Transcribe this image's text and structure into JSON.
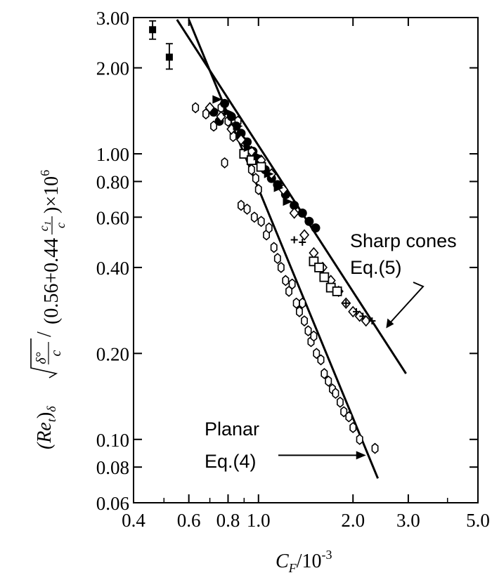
{
  "chart_data": {
    "type": "scatter",
    "x_scale": "log",
    "y_scale": "log",
    "xlim": [
      0.4,
      5.0
    ],
    "ylim": [
      0.06,
      3.0
    ],
    "grid": false,
    "x_ticks": [
      0.4,
      0.6,
      0.8,
      1.0,
      2.0,
      3.0,
      5.0
    ],
    "x_tick_labels": [
      "0.4",
      "0.6",
      "0.8",
      "1.0",
      "2.0",
      "3.0",
      "5.0"
    ],
    "x_minor_ticks": [
      0.5,
      0.7,
      0.9,
      4.0
    ],
    "y_ticks": [
      0.06,
      0.08,
      0.1,
      0.2,
      0.4,
      0.6,
      0.8,
      1.0,
      2.0,
      3.0
    ],
    "y_tick_labels": [
      "0.06",
      "0.08",
      "0.10",
      "0.20",
      "0.40",
      "0.60",
      "0.80",
      "1.00",
      "2.00",
      "3.00"
    ],
    "xlabel_main": "C",
    "xlabel_sub": "F",
    "xlabel_rest": "/10",
    "xlabel_exp": "-3",
    "ylabel": {
      "re": "(Re",
      "re_sub": "t",
      "close": ")",
      "delta_sub": "δ",
      "frac1_num": "δ°",
      "frac1_den": "c",
      "paren_text": "(0.56+0.44",
      "frac2_num": "c",
      "frac2_num_sub": "1",
      "frac2_den": "c",
      "tail": ")×10",
      "exp": "6",
      "slash": "/"
    },
    "annotations": [
      {
        "lines": [
          "Sharp cones",
          "Eq.(5)"
        ],
        "target": [
          2.55,
          0.245
        ]
      },
      {
        "lines": [
          "Planar",
          "Eq.(4)"
        ],
        "target": [
          2.2,
          0.088
        ]
      }
    ],
    "series": [
      {
        "marker": "open-hexagon",
        "points": [
          [
            0.63,
            1.45
          ],
          [
            0.68,
            1.38
          ],
          [
            0.72,
            1.25
          ],
          [
            0.76,
            1.45
          ],
          [
            0.8,
            1.3
          ],
          [
            0.83,
            1.15
          ],
          [
            0.86,
            1.3
          ],
          [
            0.9,
            1.1
          ],
          [
            0.92,
            1.0
          ],
          [
            0.78,
            0.93
          ],
          [
            0.95,
            0.88
          ],
          [
            0.98,
            0.82
          ],
          [
            1.0,
            0.75
          ],
          [
            0.88,
            0.66
          ],
          [
            0.92,
            0.64
          ],
          [
            0.97,
            0.6
          ],
          [
            1.02,
            0.58
          ],
          [
            1.06,
            0.52
          ],
          [
            1.08,
            0.55
          ],
          [
            1.12,
            0.47
          ],
          [
            1.15,
            0.43
          ],
          [
            1.18,
            0.4
          ],
          [
            1.22,
            0.36
          ],
          [
            1.25,
            0.33
          ],
          [
            1.28,
            0.35
          ],
          [
            1.32,
            0.3
          ],
          [
            1.35,
            0.28
          ],
          [
            1.38,
            0.3
          ],
          [
            1.4,
            0.26
          ],
          [
            1.44,
            0.24
          ],
          [
            1.47,
            0.22
          ],
          [
            1.5,
            0.23
          ],
          [
            1.53,
            0.2
          ],
          [
            1.58,
            0.19
          ],
          [
            1.62,
            0.17
          ],
          [
            1.67,
            0.16
          ],
          [
            1.72,
            0.15
          ],
          [
            1.76,
            0.145
          ],
          [
            1.82,
            0.135
          ],
          [
            1.87,
            0.125
          ],
          [
            1.94,
            0.12
          ],
          [
            2.0,
            0.11
          ],
          [
            2.1,
            0.1
          ],
          [
            2.35,
            0.093
          ]
        ]
      },
      {
        "marker": "filled-circle",
        "points": [
          [
            0.72,
            1.4
          ],
          [
            0.75,
            1.3
          ],
          [
            0.78,
            1.5
          ],
          [
            0.82,
            1.35
          ],
          [
            0.85,
            1.25
          ],
          [
            0.88,
            1.18
          ],
          [
            0.92,
            1.1
          ],
          [
            0.96,
            1.02
          ],
          [
            1.0,
            0.95
          ],
          [
            1.05,
            0.88
          ],
          [
            1.1,
            0.82
          ],
          [
            1.15,
            0.78
          ],
          [
            1.22,
            0.72
          ],
          [
            1.3,
            0.66
          ],
          [
            1.38,
            0.62
          ],
          [
            1.45,
            0.58
          ],
          [
            1.52,
            0.55
          ]
        ]
      },
      {
        "marker": "open-diamond",
        "points": [
          [
            0.7,
            1.45
          ],
          [
            0.76,
            1.35
          ],
          [
            0.82,
            1.22
          ],
          [
            0.88,
            1.12
          ],
          [
            0.95,
            1.02
          ],
          [
            1.02,
            0.95
          ],
          [
            1.1,
            0.85
          ],
          [
            1.2,
            0.75
          ],
          [
            1.3,
            0.62
          ],
          [
            1.4,
            0.52
          ],
          [
            1.5,
            0.45
          ],
          [
            1.6,
            0.4
          ],
          [
            1.7,
            0.36
          ],
          [
            1.8,
            0.33
          ],
          [
            1.9,
            0.3
          ],
          [
            2.0,
            0.28
          ],
          [
            2.1,
            0.27
          ],
          [
            2.2,
            0.26
          ]
        ]
      },
      {
        "marker": "open-square",
        "points": [
          [
            0.9,
            1.0
          ],
          [
            0.95,
            0.95
          ],
          [
            1.02,
            0.9
          ],
          [
            1.5,
            0.42
          ],
          [
            1.56,
            0.4
          ],
          [
            1.62,
            0.37
          ],
          [
            1.7,
            0.34
          ],
          [
            1.78,
            0.33
          ]
        ]
      },
      {
        "marker": "filled-triangle",
        "points": [
          [
            0.74,
            1.55
          ],
          [
            0.8,
            1.4
          ],
          [
            0.86,
            1.25
          ],
          [
            0.93,
            1.05
          ],
          [
            1.0,
            0.98
          ],
          [
            1.08,
            0.85
          ],
          [
            1.16,
            0.76
          ],
          [
            1.24,
            0.68
          ]
        ]
      },
      {
        "marker": "cross",
        "points": [
          [
            1.3,
            0.5
          ],
          [
            1.38,
            0.49
          ],
          [
            1.9,
            0.3
          ],
          [
            2.05,
            0.28
          ],
          [
            2.15,
            0.27
          ],
          [
            2.3,
            0.26
          ]
        ]
      },
      {
        "marker": "filled-square-errorbar",
        "points": [
          [
            0.46,
            2.72
          ],
          [
            0.52,
            2.18
          ]
        ],
        "errors": [
          [
            0.2,
            0.2
          ],
          [
            0.25,
            0.2
          ]
        ]
      }
    ],
    "lines": [
      {
        "name": "",
        "points": [
          [
            0.55,
            2.95
          ],
          [
            2.95,
            0.17
          ]
        ]
      },
      {
        "name": "",
        "points": [
          [
            0.6,
            2.95
          ],
          [
            2.4,
            0.073
          ]
        ]
      }
    ]
  }
}
